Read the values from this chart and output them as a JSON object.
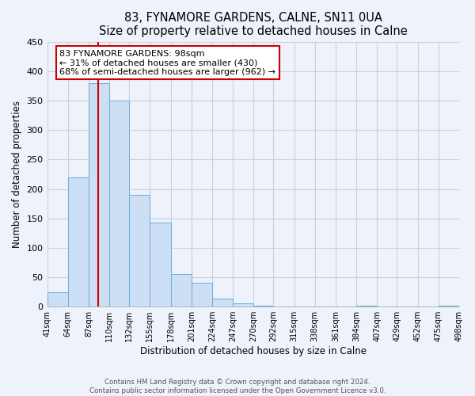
{
  "title": "83, FYNAMORE GARDENS, CALNE, SN11 0UA",
  "subtitle": "Size of property relative to detached houses in Calne",
  "xlabel": "Distribution of detached houses by size in Calne",
  "ylabel": "Number of detached properties",
  "bar_color": "#ccdff5",
  "bar_edge_color": "#6aaed6",
  "property_line_color": "#cc0000",
  "property_size": 98,
  "annotation_line1": "83 FYNAMORE GARDENS: 98sqm",
  "annotation_line2": "← 31% of detached houses are smaller (430)",
  "annotation_line3": "68% of semi-detached houses are larger (962) →",
  "bin_edges": [
    41,
    64,
    87,
    110,
    132,
    155,
    178,
    201,
    224,
    247,
    270,
    292,
    315,
    338,
    361,
    384,
    407,
    429,
    452,
    475,
    498
  ],
  "counts": [
    25,
    220,
    380,
    350,
    190,
    143,
    55,
    40,
    14,
    6,
    2,
    0,
    0,
    0,
    0,
    1,
    0,
    0,
    0,
    2
  ],
  "ylim": [
    0,
    450
  ],
  "yticks": [
    0,
    50,
    100,
    150,
    200,
    250,
    300,
    350,
    400,
    450
  ],
  "footer_line1": "Contains HM Land Registry data © Crown copyright and database right 2024.",
  "footer_line2": "Contains public sector information licensed under the Open Government Licence v3.0.",
  "bg_color": "#eef2fb",
  "grid_color": "#c8d0e0",
  "annotation_box_color": "#ffffff",
  "annotation_box_edge": "#cc0000",
  "tick_labels": [
    "41sqm",
    "64sqm",
    "87sqm",
    "110sqm",
    "132sqm",
    "155sqm",
    "178sqm",
    "201sqm",
    "224sqm",
    "247sqm",
    "270sqm",
    "292sqm",
    "315sqm",
    "338sqm",
    "361sqm",
    "384sqm",
    "407sqm",
    "429sqm",
    "452sqm",
    "475sqm",
    "498sqm"
  ]
}
